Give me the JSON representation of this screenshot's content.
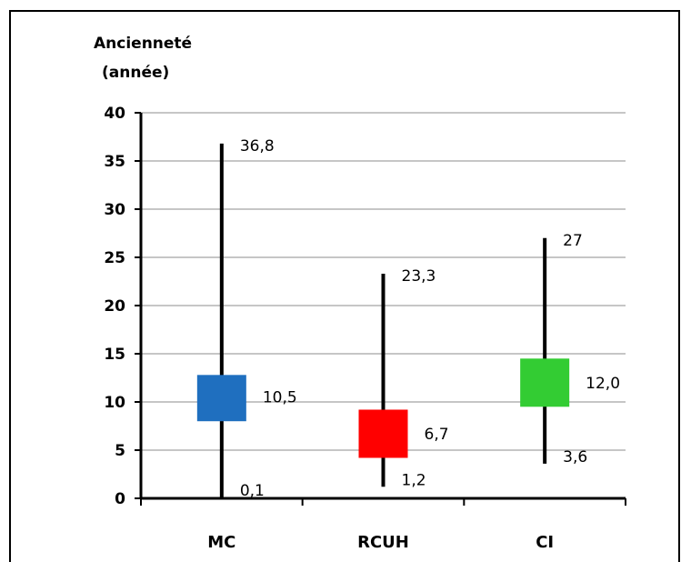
{
  "chart_data": {
    "type": "box",
    "ylabel_line1": "Ancienneté",
    "ylabel_line2": "(année)",
    "ylim": [
      0,
      40
    ],
    "yticks": [
      0,
      5,
      10,
      15,
      20,
      25,
      30,
      35,
      40
    ],
    "categories": [
      "MC",
      "RCUH",
      "CI"
    ],
    "series": [
      {
        "category": "MC",
        "min": 0.1,
        "max": 36.8,
        "median": 10.5,
        "box_low": 8.0,
        "box_high": 12.8,
        "color": "#1f6fbf",
        "labels": {
          "max": "36,8",
          "median": "10,5",
          "min": "0,1"
        }
      },
      {
        "category": "RCUH",
        "min": 1.2,
        "max": 23.3,
        "median": 6.7,
        "box_low": 4.2,
        "box_high": 9.2,
        "color": "#ff0000",
        "labels": {
          "max": "23,3",
          "median": "6,7",
          "min": "1,2"
        }
      },
      {
        "category": "CI",
        "min": 3.6,
        "max": 27.0,
        "median": 12.0,
        "box_low": 9.5,
        "box_high": 14.5,
        "color": "#33cc33",
        "labels": {
          "max": "27",
          "median": "12,0",
          "min": "3,6"
        }
      }
    ],
    "grid": true
  }
}
